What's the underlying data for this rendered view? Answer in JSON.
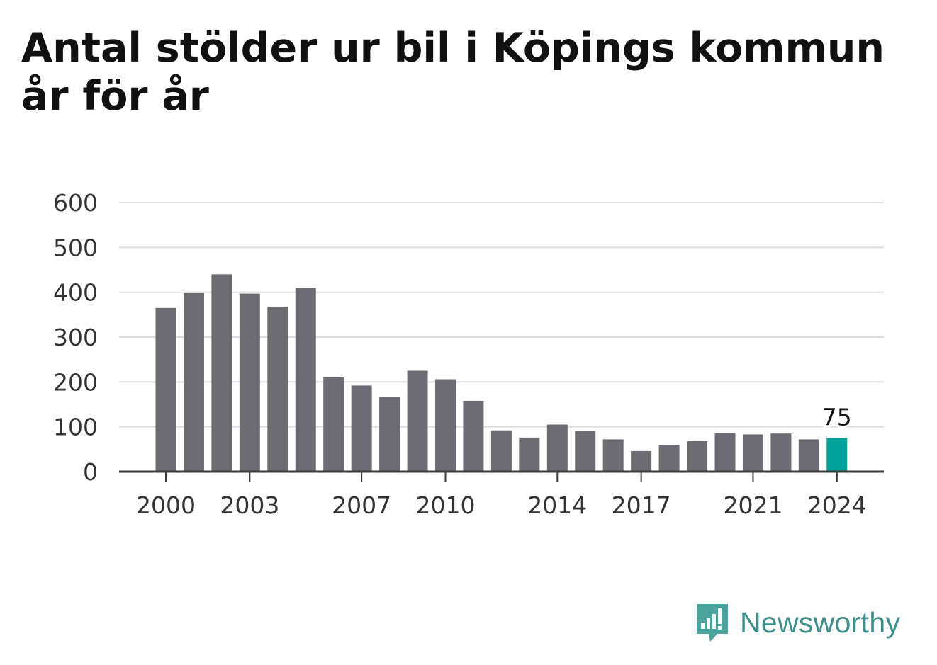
{
  "chart_data": {
    "type": "bar",
    "title": "Antal stölder ur bil i Köpings kommun år för år",
    "categories": [
      "2000",
      "2001",
      "2002",
      "2003",
      "2004",
      "2005",
      "2006",
      "2007",
      "2008",
      "2009",
      "2010",
      "2011",
      "2012",
      "2013",
      "2014",
      "2015",
      "2016",
      "2017",
      "2018",
      "2019",
      "2020",
      "2021",
      "2022",
      "2023",
      "2024"
    ],
    "values": [
      365,
      398,
      440,
      397,
      368,
      410,
      210,
      192,
      167,
      225,
      206,
      158,
      92,
      76,
      105,
      91,
      72,
      46,
      60,
      68,
      86,
      83,
      85,
      72,
      75
    ],
    "x_tick_labels": [
      "2000",
      "2003",
      "2007",
      "2010",
      "2014",
      "2017",
      "2021",
      "2024"
    ],
    "y_ticks": [
      0,
      100,
      200,
      300,
      400,
      500,
      600
    ],
    "ylim": [
      0,
      600
    ],
    "xlabel": "",
    "ylabel": "",
    "grid": true,
    "highlight": {
      "category": "2024",
      "label": "75"
    },
    "colors": {
      "bar": "#6d6c72",
      "highlight": "#00a196",
      "grid": "#dcdcdc",
      "axis": "#3a3a3a",
      "text": "#333333"
    }
  },
  "brand": {
    "name": "Newsworthy",
    "icon": "newsworthy-logo-icon",
    "color": "#3c8f8a"
  }
}
